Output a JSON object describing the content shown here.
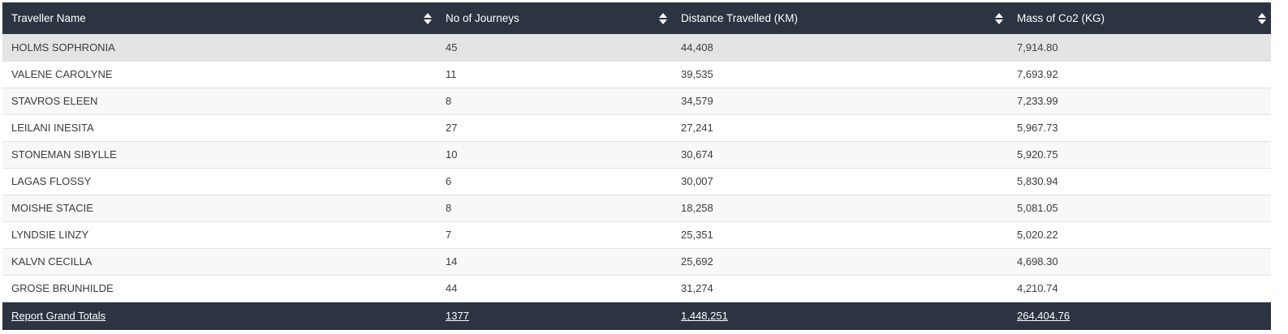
{
  "table": {
    "columns": [
      {
        "label": "Traveller Name",
        "sort_icon": "sort-icon"
      },
      {
        "label": "No of Journeys",
        "sort_icon": "sort-icon"
      },
      {
        "label": "Distance Travelled (KM)",
        "sort_icon": "sort-icon"
      },
      {
        "label": "Mass of Co2 (KG)",
        "sort_icon": "sort-icon"
      }
    ],
    "rows": [
      [
        "HOLMS SOPHRONIA",
        "45",
        "44,408",
        "7,914.80"
      ],
      [
        "VALENE CAROLYNE",
        "11",
        "39,535",
        "7,693.92"
      ],
      [
        "STAVROS ELEEN",
        "8",
        "34,579",
        "7,233.99"
      ],
      [
        "LEILANI INESITA",
        "27",
        "27,241",
        "5,967.73"
      ],
      [
        "STONEMAN SIBYLLE",
        "10",
        "30,674",
        "5,920.75"
      ],
      [
        "LAGAS FLOSSY",
        "6",
        "30,007",
        "5,830.94"
      ],
      [
        "MOISHE STACIE",
        "8",
        "18,258",
        "5,081.05"
      ],
      [
        "LYNDSIE LINZY",
        "7",
        "25,351",
        "5,020.22"
      ],
      [
        "KALVN CECILLA",
        "14",
        "25,692",
        "4,698.30"
      ],
      [
        "GROSE BRUNHILDE",
        "44",
        "31,274",
        "4,210.74"
      ]
    ],
    "totals": [
      "Report Grand Totals",
      "1377",
      "1,448,251",
      "264,404.76"
    ]
  },
  "colors": {
    "header_bg": "#2b3440",
    "row_hover_bg": "#e4e4e4",
    "row_alt_bg": "#f8f8f8"
  }
}
